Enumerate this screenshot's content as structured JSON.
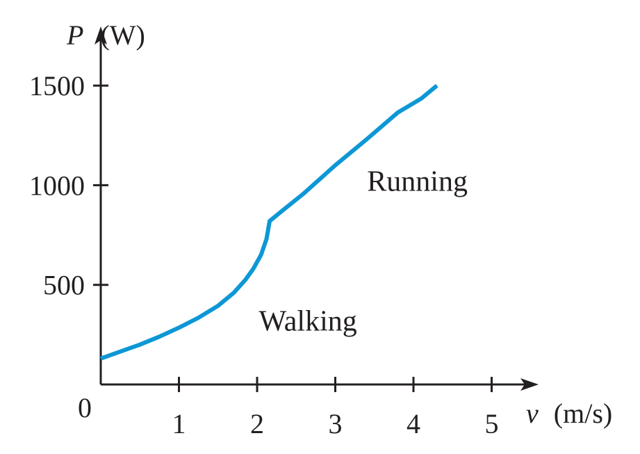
{
  "chart_data": {
    "type": "line",
    "title": "",
    "xlabel": {
      "symbol": "v",
      "unit": "(m/s)"
    },
    "ylabel": {
      "symbol": "P",
      "unit": "(W)"
    },
    "origin_label": "0",
    "xlim": [
      0,
      5.6
    ],
    "ylim": [
      0,
      1700
    ],
    "x_ticks": [
      {
        "value": 1,
        "label": "1"
      },
      {
        "value": 2,
        "label": "2"
      },
      {
        "value": 3,
        "label": "3"
      },
      {
        "value": 4,
        "label": "4"
      },
      {
        "value": 5,
        "label": "5"
      }
    ],
    "y_ticks": [
      {
        "value": 500,
        "label": "500"
      },
      {
        "value": 1000,
        "label": "1000"
      },
      {
        "value": 1500,
        "label": "1500"
      }
    ],
    "series": [
      {
        "color": "#0d97d5",
        "x": [
          0,
          0.25,
          0.5,
          0.75,
          1.0,
          1.25,
          1.5,
          1.7,
          1.85,
          1.95,
          2.05,
          2.12,
          2.16,
          2.3,
          2.6,
          3.0,
          3.4,
          3.8,
          4.1,
          4.3
        ],
        "y": [
          130,
          165,
          200,
          240,
          285,
          335,
          395,
          460,
          525,
          580,
          650,
          730,
          820,
          865,
          960,
          1100,
          1230,
          1365,
          1435,
          1500
        ]
      }
    ],
    "annotations": [
      {
        "text": "Walking",
        "x": 2.65,
        "y": 320
      },
      {
        "text": "Running",
        "x": 4.05,
        "y": 1020
      }
    ],
    "grid": false,
    "legend": "none"
  }
}
